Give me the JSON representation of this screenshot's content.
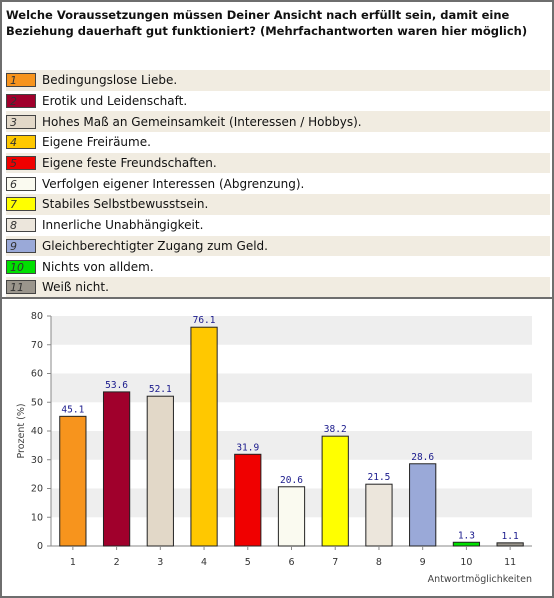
{
  "question": "Welche Voraussetzungen müssen Deiner Ansicht nach erfüllt sein, damit eine Beziehung dauerhaft gut funktioniert? (Mehrfachantworten waren hier möglich)",
  "legend": [
    {
      "num": "1",
      "label": "Bedingungslose Liebe.",
      "color": "#f7941d"
    },
    {
      "num": "2",
      "label": "Erotik und Leidenschaft.",
      "color": "#a0002c"
    },
    {
      "num": "3",
      "label": "Hohes Maß an Gemeinsamkeit (Interessen / Hobbys).",
      "color": "#e2d8c8"
    },
    {
      "num": "4",
      "label": "Eigene Freiräume.",
      "color": "#ffc800"
    },
    {
      "num": "5",
      "label": "Eigene feste Freundschaften.",
      "color": "#f00000"
    },
    {
      "num": "6",
      "label": "Verfolgen eigener Interessen (Abgrenzung).",
      "color": "#fafaf0"
    },
    {
      "num": "7",
      "label": "Stabiles Selbstbewusstsein.",
      "color": "#ffff00"
    },
    {
      "num": "8",
      "label": "Innerliche Unabhängigkeit.",
      "color": "#ece6dc"
    },
    {
      "num": "9",
      "label": "Gleichberechtigter Zugang zum Geld.",
      "color": "#9aa9d8"
    },
    {
      "num": "10",
      "label": "Nichts von alldem.",
      "color": "#00e000"
    },
    {
      "num": "11",
      "label": "Weiß nicht.",
      "color": "#9a958c"
    }
  ],
  "chart_data": {
    "type": "bar",
    "categories": [
      "1",
      "2",
      "3",
      "4",
      "5",
      "6",
      "7",
      "8",
      "9",
      "10",
      "11"
    ],
    "values": [
      45.1,
      53.6,
      52.1,
      76.1,
      31.9,
      20.6,
      38.2,
      21.5,
      28.6,
      1.3,
      1.1
    ],
    "value_labels": [
      "45.1",
      "53.6",
      "52.1",
      "76.1",
      "31.9",
      "20.6",
      "38.2",
      "21.5",
      "28.6",
      "1.3",
      "1.1"
    ],
    "colors": [
      "#f7941d",
      "#a0002c",
      "#e2d8c8",
      "#ffc800",
      "#f00000",
      "#fafaf0",
      "#ffff00",
      "#ece6dc",
      "#9aa9d8",
      "#00e000",
      "#9a958c"
    ],
    "ylabel": "Prozent (%)",
    "xlabel": "Antwortmöglichkeiten",
    "ylim": [
      0,
      80
    ],
    "yticks": [
      "0",
      "10",
      "20",
      "30",
      "40",
      "50",
      "60",
      "70",
      "80"
    ],
    "grid": "alternating horizontal bands"
  }
}
